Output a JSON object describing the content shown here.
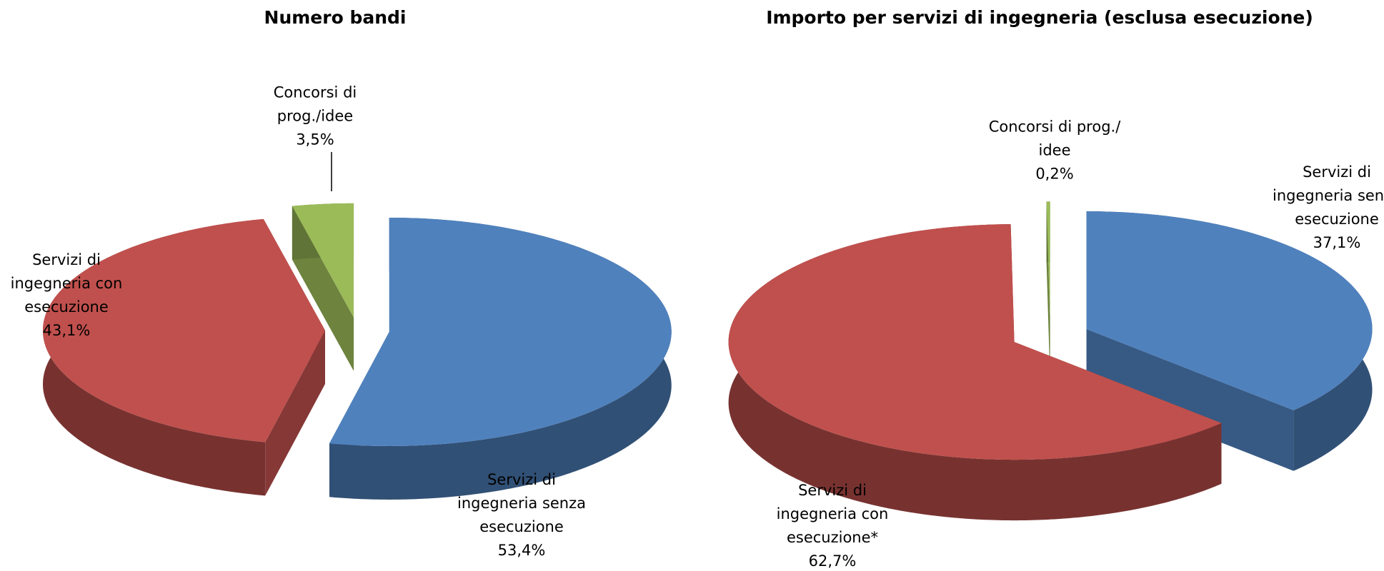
{
  "chart_data": [
    {
      "type": "pie",
      "title": "Numero bandi",
      "categories": [
        "Servizi di ingegneria senza esecuzione",
        "Servizi di ingegneria con esecuzione",
        "Concorsi di prog./idee"
      ],
      "values": [
        53.4,
        43.1,
        3.5
      ],
      "value_labels": [
        "53,4%",
        "43,1%",
        "3,5%"
      ],
      "colors": [
        "#4f81bd",
        "#c0504d",
        "#9bbb59"
      ]
    },
    {
      "type": "pie",
      "title": "Importo per servizi di ingegneria (esclusa esecuzione)",
      "categories": [
        "Servizi di ingegneria senza esecuzione",
        "Servizi di ingegneria con esecuzione*",
        "Concorsi di prog./ idee"
      ],
      "values": [
        37.1,
        62.7,
        0.2
      ],
      "value_labels": [
        "37,1%",
        "62,7%",
        "0,2%"
      ],
      "colors": [
        "#4f81bd",
        "#c0504d",
        "#9bbb59"
      ]
    }
  ]
}
